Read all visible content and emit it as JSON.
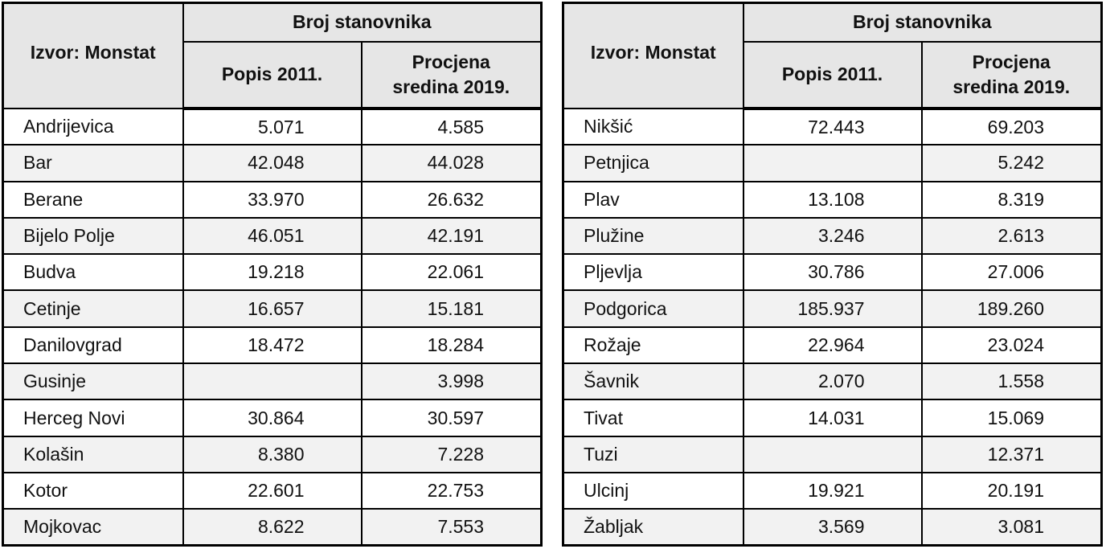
{
  "header": {
    "source_label": "Izvor: Monstat",
    "group_label": "Broj stanovnika",
    "col1_label": "Popis 2011.",
    "col2_line1": "Procjena",
    "col2_line2": "sredina 2019."
  },
  "left_table": {
    "rows": [
      {
        "name": "Andrijevica",
        "census": "5.071",
        "estimate": "4.585"
      },
      {
        "name": "Bar",
        "census": "42.048",
        "estimate": "44.028"
      },
      {
        "name": "Berane",
        "census": "33.970",
        "estimate": "26.632"
      },
      {
        "name": "Bijelo Polje",
        "census": "46.051",
        "estimate": "42.191"
      },
      {
        "name": "Budva",
        "census": "19.218",
        "estimate": "22.061"
      },
      {
        "name": "Cetinje",
        "census": "16.657",
        "estimate": "15.181"
      },
      {
        "name": "Danilovgrad",
        "census": "18.472",
        "estimate": "18.284"
      },
      {
        "name": "Gusinje",
        "census": "",
        "estimate": "3.998"
      },
      {
        "name": "Herceg Novi",
        "census": "30.864",
        "estimate": "30.597"
      },
      {
        "name": "Kolašin",
        "census": "8.380",
        "estimate": "7.228"
      },
      {
        "name": "Kotor",
        "census": "22.601",
        "estimate": "22.753"
      },
      {
        "name": "Mojkovac",
        "census": "8.622",
        "estimate": "7.553"
      }
    ]
  },
  "right_table": {
    "rows": [
      {
        "name": "Nikšić",
        "census": "72.443",
        "estimate": "69.203"
      },
      {
        "name": "Petnjica",
        "census": "",
        "estimate": "5.242"
      },
      {
        "name": "Plav",
        "census": "13.108",
        "estimate": "8.319"
      },
      {
        "name": "Plužine",
        "census": "3.246",
        "estimate": "2.613"
      },
      {
        "name": "Pljevlja",
        "census": "30.786",
        "estimate": "27.006"
      },
      {
        "name": "Podgorica",
        "census": "185.937",
        "estimate": "189.260"
      },
      {
        "name": "Rožaje",
        "census": "22.964",
        "estimate": "23.024"
      },
      {
        "name": "Šavnik",
        "census": "2.070",
        "estimate": "1.558"
      },
      {
        "name": "Tivat",
        "census": "14.031",
        "estimate": "15.069"
      },
      {
        "name": "Tuzi",
        "census": "",
        "estimate": "12.371"
      },
      {
        "name": "Ulcinj",
        "census": "19.921",
        "estimate": "20.191"
      },
      {
        "name": "Žabljak",
        "census": "3.569",
        "estimate": "3.081"
      }
    ]
  }
}
